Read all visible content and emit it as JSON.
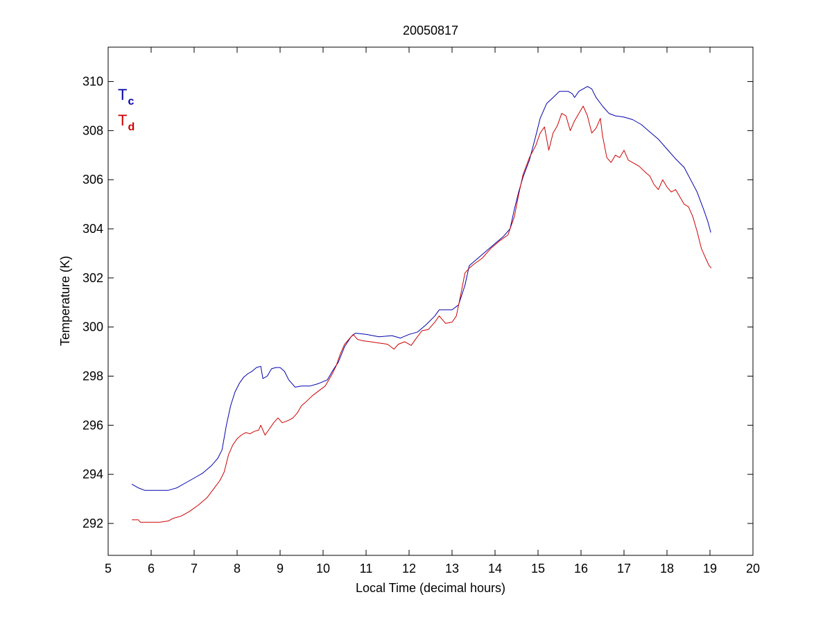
{
  "chart_data": {
    "type": "line",
    "title": "20050817",
    "xlabel": "Local Time (decimal hours)",
    "ylabel": "Temperature (K)",
    "xlim": [
      5,
      20
    ],
    "ylim": [
      290.7,
      311.4
    ],
    "x_ticks": [
      "5",
      "6",
      "7",
      "8",
      "9",
      "10",
      "11",
      "12",
      "13",
      "14",
      "15",
      "16",
      "17",
      "18",
      "19",
      "20"
    ],
    "y_ticks": [
      "292",
      "294",
      "296",
      "298",
      "300",
      "302",
      "304",
      "306",
      "308",
      "310"
    ],
    "grid": false,
    "legend_position": "top-left",
    "series": [
      {
        "name": "T",
        "subscript": "c",
        "color": "#0000aa",
        "points": [
          [
            5.55,
            293.6
          ],
          [
            5.7,
            293.45
          ],
          [
            5.85,
            293.35
          ],
          [
            6.0,
            293.35
          ],
          [
            6.2,
            293.35
          ],
          [
            6.4,
            293.35
          ],
          [
            6.6,
            293.45
          ],
          [
            6.8,
            293.65
          ],
          [
            7.0,
            293.85
          ],
          [
            7.2,
            294.05
          ],
          [
            7.4,
            294.35
          ],
          [
            7.55,
            294.65
          ],
          [
            7.65,
            295.0
          ],
          [
            7.75,
            296.0
          ],
          [
            7.85,
            296.8
          ],
          [
            7.95,
            297.35
          ],
          [
            8.05,
            297.7
          ],
          [
            8.15,
            297.95
          ],
          [
            8.25,
            298.1
          ],
          [
            8.35,
            298.2
          ],
          [
            8.45,
            298.35
          ],
          [
            8.55,
            298.4
          ],
          [
            8.6,
            297.9
          ],
          [
            8.7,
            298.0
          ],
          [
            8.8,
            298.3
          ],
          [
            8.9,
            298.35
          ],
          [
            9.0,
            298.35
          ],
          [
            9.1,
            298.2
          ],
          [
            9.2,
            297.85
          ],
          [
            9.35,
            297.55
          ],
          [
            9.5,
            297.6
          ],
          [
            9.7,
            297.6
          ],
          [
            9.9,
            297.7
          ],
          [
            10.1,
            297.85
          ],
          [
            10.25,
            298.3
          ],
          [
            10.35,
            298.55
          ],
          [
            10.5,
            299.2
          ],
          [
            10.65,
            299.6
          ],
          [
            10.75,
            299.75
          ],
          [
            11.0,
            299.7
          ],
          [
            11.3,
            299.6
          ],
          [
            11.6,
            299.65
          ],
          [
            11.8,
            299.55
          ],
          [
            12.0,
            299.7
          ],
          [
            12.2,
            299.8
          ],
          [
            12.4,
            300.1
          ],
          [
            12.6,
            300.45
          ],
          [
            12.7,
            300.7
          ],
          [
            13.0,
            300.7
          ],
          [
            13.15,
            300.9
          ],
          [
            13.3,
            301.7
          ],
          [
            13.4,
            302.5
          ],
          [
            13.6,
            302.8
          ],
          [
            13.8,
            303.1
          ],
          [
            14.0,
            303.4
          ],
          [
            14.2,
            303.7
          ],
          [
            14.35,
            304.0
          ],
          [
            14.45,
            304.8
          ],
          [
            14.55,
            305.5
          ],
          [
            14.65,
            306.1
          ],
          [
            14.8,
            306.8
          ],
          [
            14.95,
            307.8
          ],
          [
            15.05,
            308.5
          ],
          [
            15.2,
            309.1
          ],
          [
            15.35,
            309.35
          ],
          [
            15.5,
            309.6
          ],
          [
            15.7,
            309.6
          ],
          [
            15.8,
            309.5
          ],
          [
            15.85,
            309.35
          ],
          [
            15.95,
            309.6
          ],
          [
            16.05,
            309.7
          ],
          [
            16.15,
            309.8
          ],
          [
            16.25,
            309.7
          ],
          [
            16.35,
            309.35
          ],
          [
            16.5,
            309.0
          ],
          [
            16.65,
            308.7
          ],
          [
            16.8,
            308.6
          ],
          [
            17.0,
            308.55
          ],
          [
            17.2,
            308.45
          ],
          [
            17.4,
            308.25
          ],
          [
            17.6,
            307.95
          ],
          [
            17.8,
            307.65
          ],
          [
            18.0,
            307.25
          ],
          [
            18.2,
            306.85
          ],
          [
            18.4,
            306.5
          ],
          [
            18.55,
            306.0
          ],
          [
            18.7,
            305.5
          ],
          [
            18.85,
            304.8
          ],
          [
            18.95,
            304.3
          ],
          [
            19.02,
            303.85
          ]
        ]
      },
      {
        "name": "T",
        "subscript": "d",
        "color": "#cc0000",
        "points": [
          [
            5.55,
            292.15
          ],
          [
            5.7,
            292.15
          ],
          [
            5.75,
            292.05
          ],
          [
            6.0,
            292.05
          ],
          [
            6.2,
            292.05
          ],
          [
            6.4,
            292.1
          ],
          [
            6.5,
            292.2
          ],
          [
            6.7,
            292.3
          ],
          [
            6.9,
            292.5
          ],
          [
            7.1,
            292.75
          ],
          [
            7.3,
            293.05
          ],
          [
            7.45,
            293.4
          ],
          [
            7.6,
            293.75
          ],
          [
            7.7,
            294.1
          ],
          [
            7.8,
            294.8
          ],
          [
            7.9,
            295.2
          ],
          [
            8.0,
            295.45
          ],
          [
            8.1,
            295.6
          ],
          [
            8.2,
            295.7
          ],
          [
            8.3,
            295.65
          ],
          [
            8.4,
            295.75
          ],
          [
            8.5,
            295.8
          ],
          [
            8.55,
            296.0
          ],
          [
            8.65,
            295.6
          ],
          [
            8.75,
            295.85
          ],
          [
            8.85,
            296.1
          ],
          [
            8.95,
            296.3
          ],
          [
            9.05,
            296.1
          ],
          [
            9.2,
            296.2
          ],
          [
            9.3,
            296.3
          ],
          [
            9.4,
            296.5
          ],
          [
            9.5,
            296.8
          ],
          [
            9.6,
            296.95
          ],
          [
            9.75,
            297.2
          ],
          [
            9.9,
            297.4
          ],
          [
            10.05,
            297.6
          ],
          [
            10.2,
            298.05
          ],
          [
            10.3,
            298.4
          ],
          [
            10.4,
            298.9
          ],
          [
            10.5,
            299.3
          ],
          [
            10.6,
            299.5
          ],
          [
            10.7,
            299.7
          ],
          [
            10.8,
            299.5
          ],
          [
            10.9,
            299.45
          ],
          [
            11.1,
            299.4
          ],
          [
            11.3,
            299.35
          ],
          [
            11.5,
            299.3
          ],
          [
            11.65,
            299.1
          ],
          [
            11.75,
            299.3
          ],
          [
            11.9,
            299.4
          ],
          [
            12.05,
            299.25
          ],
          [
            12.15,
            299.5
          ],
          [
            12.3,
            299.85
          ],
          [
            12.45,
            299.9
          ],
          [
            12.6,
            300.2
          ],
          [
            12.7,
            300.45
          ],
          [
            12.85,
            300.15
          ],
          [
            13.0,
            300.2
          ],
          [
            13.1,
            300.45
          ],
          [
            13.2,
            301.3
          ],
          [
            13.3,
            302.2
          ],
          [
            13.4,
            302.4
          ],
          [
            13.5,
            302.55
          ],
          [
            13.7,
            302.8
          ],
          [
            13.9,
            303.2
          ],
          [
            14.1,
            303.5
          ],
          [
            14.3,
            303.75
          ],
          [
            14.45,
            304.5
          ],
          [
            14.55,
            305.4
          ],
          [
            14.65,
            306.2
          ],
          [
            14.8,
            306.9
          ],
          [
            14.95,
            307.4
          ],
          [
            15.05,
            307.9
          ],
          [
            15.15,
            308.15
          ],
          [
            15.25,
            307.2
          ],
          [
            15.35,
            307.9
          ],
          [
            15.45,
            308.2
          ],
          [
            15.55,
            308.7
          ],
          [
            15.65,
            308.6
          ],
          [
            15.75,
            308.0
          ],
          [
            15.85,
            308.4
          ],
          [
            15.95,
            308.7
          ],
          [
            16.05,
            309.0
          ],
          [
            16.15,
            308.6
          ],
          [
            16.25,
            307.9
          ],
          [
            16.35,
            308.1
          ],
          [
            16.45,
            308.5
          ],
          [
            16.5,
            307.8
          ],
          [
            16.6,
            306.9
          ],
          [
            16.7,
            306.7
          ],
          [
            16.8,
            307.0
          ],
          [
            16.9,
            306.9
          ],
          [
            17.0,
            307.2
          ],
          [
            17.1,
            306.8
          ],
          [
            17.2,
            306.7
          ],
          [
            17.35,
            306.55
          ],
          [
            17.5,
            306.3
          ],
          [
            17.6,
            306.15
          ],
          [
            17.7,
            305.8
          ],
          [
            17.8,
            305.6
          ],
          [
            17.9,
            306.0
          ],
          [
            18.0,
            305.7
          ],
          [
            18.1,
            305.5
          ],
          [
            18.2,
            305.6
          ],
          [
            18.3,
            305.3
          ],
          [
            18.4,
            305.0
          ],
          [
            18.5,
            304.9
          ],
          [
            18.6,
            304.5
          ],
          [
            18.7,
            303.9
          ],
          [
            18.8,
            303.2
          ],
          [
            18.9,
            302.8
          ],
          [
            18.98,
            302.5
          ],
          [
            19.03,
            302.4
          ]
        ]
      }
    ]
  }
}
